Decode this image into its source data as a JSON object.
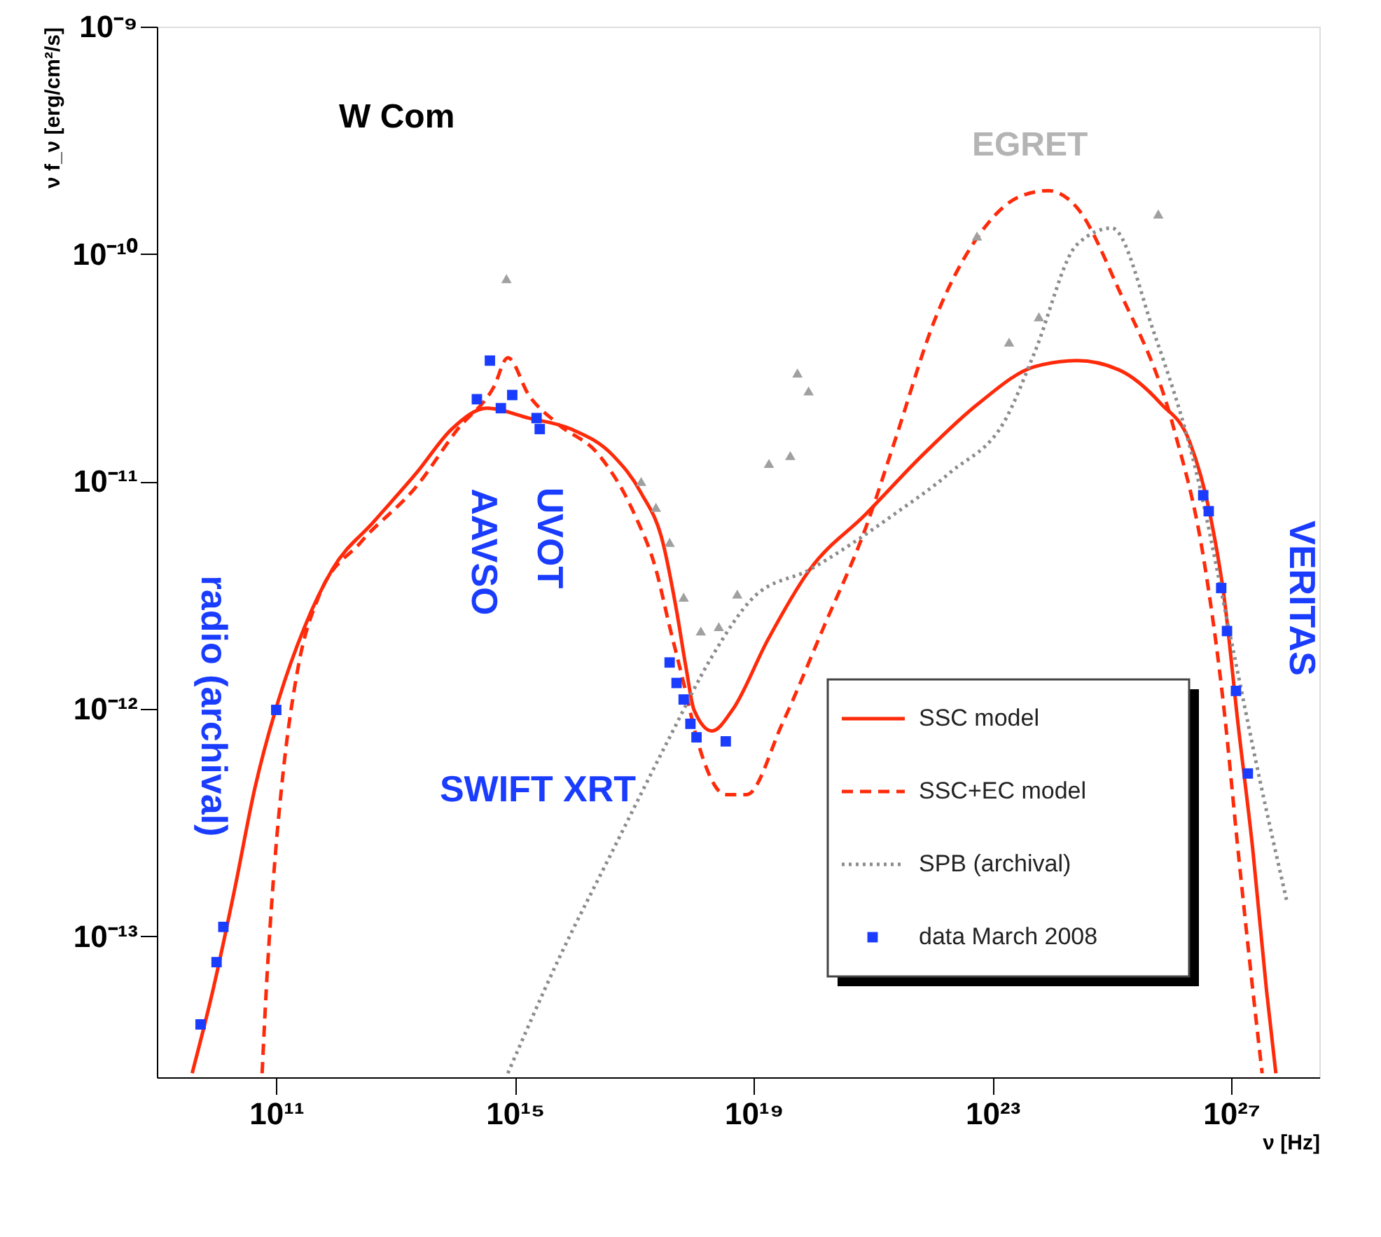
{
  "chart_data": {
    "type": "line",
    "xlabel": "ν [Hz]",
    "ylabel": "ν f_ν [erg/cm²/s]",
    "log": "xy",
    "grid": false,
    "legend": "bottom right",
    "xlim": [
      1000000000.0,
      3e+28
    ],
    "ylim": [
      2.4e-14,
      1e-09
    ],
    "xticks": [
      {
        "value": 100000000000.0,
        "label": "10¹¹"
      },
      {
        "value": 1000000000000000.0,
        "label": "10¹⁵"
      },
      {
        "value": 1e+19,
        "label": "10¹⁹"
      },
      {
        "value": 1e+23,
        "label": "10²³"
      },
      {
        "value": 1e+27,
        "label": "10²⁷"
      }
    ],
    "yticks": [
      {
        "value": 1e-13,
        "label": "10⁻¹³"
      },
      {
        "value": 1e-12,
        "label": "10⁻¹²"
      },
      {
        "value": 1e-11,
        "label": "10⁻¹¹"
      },
      {
        "value": 1e-10,
        "label": "10⁻¹⁰"
      },
      {
        "value": 1e-09,
        "label": "10⁻⁹"
      }
    ],
    "annotations": [
      "W Com",
      "EGRET",
      "radio (archival)",
      "AAVSO",
      "UVOT",
      "SWIFT XRT",
      "VERITAS"
    ],
    "series": [
      {
        "name": "SSC model",
        "color": "#ff2a0a",
        "line_style": "solid",
        "marker": "none",
        "x": [
          3900000000.0,
          8700000000.0,
          20000000000.0,
          44000000000.0,
          110000000000.0,
          300000000000.0,
          870000000000.0,
          4400000000000.0,
          23000000000000.0,
          87000000000000.0,
          340000000000000.0,
          1700000000000000.0,
          8700000000000000.0,
          4.4e+16,
          1.3e+17,
          3e+17,
          5.1e+17,
          7.4e+17,
          1e+18,
          2e+18,
          4.4e+18,
          1.7e+19,
          8.7e+19,
          7.6e+20,
          6.6e+21,
          5.8e+22,
          5.1e+23,
          2.6e+24,
          1.3e+25,
          6.6e+25,
          2e+26,
          4.4e+26,
          7.6e+26,
          1.3e+27,
          2.3e+27,
          3.9e+27,
          5.6e+27
        ],
        "values": [
          2.5e-14,
          5.8e-14,
          1.6e-13,
          4.5e-13,
          1.1e-12,
          2.3e-12,
          4.1e-12,
          6.7e-12,
          1.1e-11,
          1.7e-11,
          2.1e-11,
          1.9e-11,
          1.7e-11,
          1.3e-11,
          8.9e-12,
          5.4e-12,
          2.7e-12,
          1.5e-12,
          9.9e-13,
          8e-13,
          9.9e-13,
          2e-12,
          4.1e-12,
          7.2e-12,
          1.3e-11,
          2.2e-11,
          3.2e-11,
          3.4e-11,
          3.1e-11,
          2.2e-11,
          1.5e-11,
          7.2e-12,
          3.1e-12,
          8.6e-13,
          2.4e-13,
          5.8e-14,
          2.5e-14
        ]
      },
      {
        "name": "SSC+EC model",
        "color": "#ff2a0a",
        "line_style": "dashed",
        "marker": "none",
        "x": [
          58000000000.0,
          68000000000.0,
          90000000000.0,
          130000000000.0,
          230000000000.0,
          510000000000.0,
          2600000000000.0,
          23000000000000.0,
          110000000000000.0,
          440000000000000.0,
          760000000000000.0,
          1700000000000000.0,
          5100000000000000.0,
          2.6e+16,
          1e+17,
          2.3e+17,
          3.9e+17,
          6.7e+17,
          1.1e+18,
          3.4e+18,
          7.6e+18,
          3e+19,
          1.5e+20,
          7.6e+20,
          2.3e+21,
          1.1e+22,
          5.8e+22,
          3e+23,
          8.7e+23,
          2.6e+24,
          1.3e+25,
          1.1e+26,
          3.4e+26,
          7.6e+26,
          1.3e+27,
          2.3e+27,
          3.3e+27
        ],
        "values": [
          2.5e-14,
          5.8e-14,
          1.8e-13,
          5.2e-13,
          1.5e-12,
          3.1e-12,
          5.4e-12,
          9.6e-12,
          1.7e-11,
          2.6e-11,
          3.5e-11,
          2.4e-11,
          1.8e-11,
          1.3e-11,
          7.2e-12,
          4.1e-12,
          2.3e-12,
          1.3e-12,
          7.5e-13,
          4.2e-13,
          4.2e-13,
          8.6e-13,
          2.3e-12,
          6.3e-12,
          1.5e-11,
          5.2e-11,
          1.2e-10,
          1.8e-10,
          1.9e-10,
          1.6e-10,
          7e-11,
          1.7e-11,
          4.7e-12,
          9.9e-13,
          2.4e-13,
          5.8e-14,
          2.5e-14
        ]
      },
      {
        "name": "SPB (archival)",
        "color": "#8c8c8c",
        "line_style": "dotted",
        "marker": "none",
        "x": [
          760000000000000.0,
          5100000000000000.0,
          4.4e+16,
          3.9e+17,
          2e+18,
          1e+19,
          8.7e+19,
          2.3e+21,
          2e+22,
          1.7e+23,
          5.1e+23,
          2.6e+24,
          1e+25,
          5.1e+25,
          2.6e+26,
          1e+27,
          3e+27,
          8.7e+27
        ],
        "values": [
          2.5e-14,
          7.7e-14,
          2.4e-13,
          7.5e-13,
          1.7e-12,
          3.1e-12,
          4.1e-12,
          7.2e-12,
          1.1e-11,
          1.9e-11,
          3.7e-11,
          1.1e-10,
          1.3e-10,
          4.5e-11,
          1.1e-11,
          2e-12,
          4.9e-13,
          1.4e-13
        ]
      },
      {
        "type": "scatter",
        "color": "#a0a0a0",
        "marker": "triangle",
        "x": [
          720000000000000.0,
          1.3e+17,
          2.3e+17,
          3.9e+17,
          6.7e+17,
          1.3e+18,
          2.6e+18,
          5.3e+18,
          1.8e+19,
          4.1e+19,
          5.4e+19,
          8.3e+19,
          5.5e+22,
          1.9e+23,
          6e+23,
          6e+25
        ],
        "values": [
          7.8e-11,
          1e-11,
          7.7e-12,
          5.4e-12,
          3.1e-12,
          2.2e-12,
          2.3e-12,
          3.2e-12,
          1.2e-11,
          1.3e-11,
          3e-11,
          2.5e-11,
          1.2e-10,
          4.1e-11,
          5.3e-11,
          1.5e-10
        ]
      },
      {
        "name": "data March 2008",
        "type": "scatter",
        "color": "#1a3cff",
        "marker": "square",
        "x": [
          5400000000.0,
          10000000000.0,
          13000000000.0,
          100000000000.0,
          230000000000000.0,
          380000000000000.0,
          580000000000000.0,
          900000000000000.0,
          2300000000000000.0,
          2600000000000000.0,
          3.9e+17,
          5.1e+17,
          6.7e+17,
          8.7e+17,
          1.1e+18,
          3.4e+18,
          3.4e+26,
          4.2e+26,
          6.8e+26,
          8.5e+26,
          1.2e+27,
          1.9e+27
        ],
        "values": [
          4.1e-14,
          7.7e-14,
          1.1e-13,
          9.9e-13,
          2.3e-11,
          3.4e-11,
          2.1e-11,
          2.4e-11,
          1.9e-11,
          1.7e-11,
          1.6e-12,
          1.3e-12,
          1.1e-12,
          8.6e-13,
          7.5e-13,
          7.2e-13,
          8.7e-12,
          7.4e-12,
          3.4e-12,
          2.2e-12,
          1.2e-12,
          5.2e-13
        ]
      }
    ]
  }
}
